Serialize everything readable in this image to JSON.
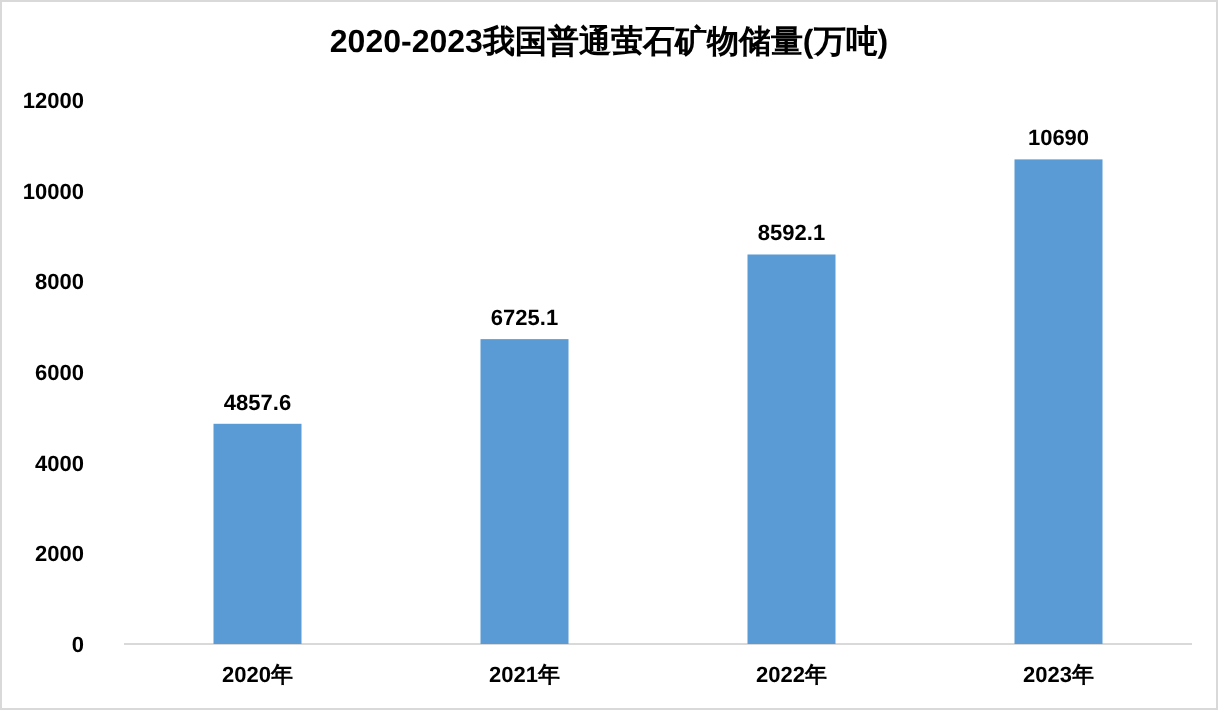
{
  "chart_data": {
    "type": "bar",
    "title": "2020-2023我国普通萤石矿物储量(万吨)",
    "categories": [
      "2020年",
      "2021年",
      "2022年",
      "2023年"
    ],
    "values": [
      4857.6,
      6725.1,
      8592.1,
      10690
    ],
    "color": "#5b9bd5",
    "ylim": [
      0,
      12000
    ],
    "yticks": [
      0,
      2000,
      4000,
      6000,
      8000,
      10000,
      12000
    ],
    "data_labels": true,
    "grid": false
  }
}
